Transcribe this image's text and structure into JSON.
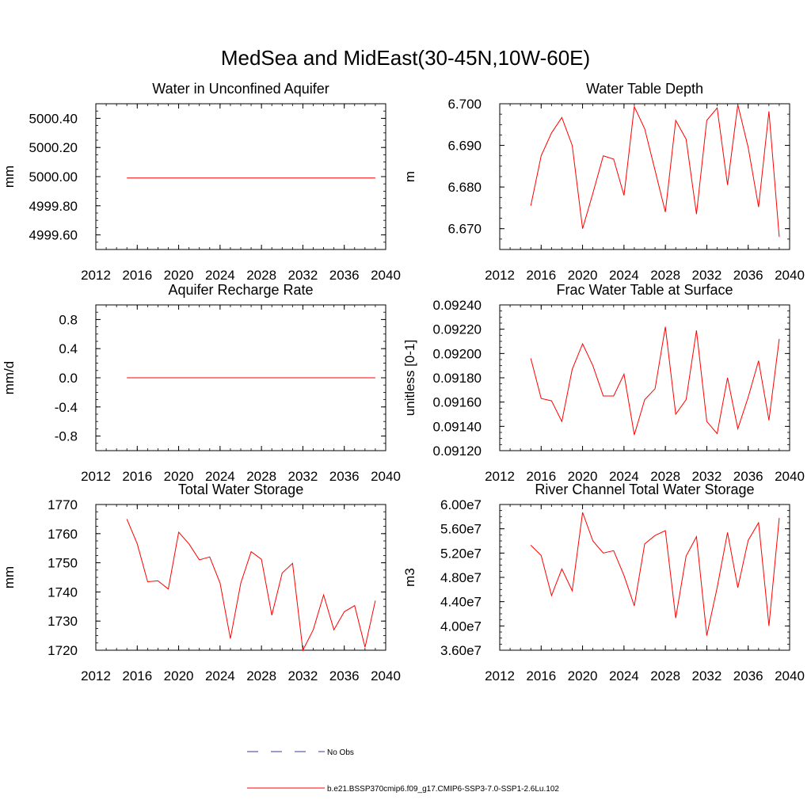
{
  "figure_title": "MedSea and MidEast(30-45N,10W-60E)",
  "legend": {
    "items": [
      {
        "label": "No Obs",
        "style": "dashed",
        "color": "#3a3a9a"
      },
      {
        "label": "b.e21.BSSP370cmip6.f09_g17.CMIP6-SSP3-7.0-SSP1-2.6Lu.102",
        "style": "solid",
        "color": "#ff0000"
      }
    ]
  },
  "chart_data": [
    {
      "type": "line",
      "title": "Water in Unconfined Aquifer",
      "ylabel": "mm",
      "xlim": [
        2012,
        2040
      ],
      "xticks": [
        2012,
        2016,
        2020,
        2024,
        2028,
        2032,
        2036,
        2040
      ],
      "xticklabels": [
        "2012",
        "2016",
        "2020",
        "2024",
        "2028",
        "2032",
        "2036",
        "2040"
      ],
      "ylim": [
        4999.5,
        5000.5
      ],
      "yticks": [
        4999.6,
        4999.8,
        5000.0,
        5000.2,
        5000.4
      ],
      "yticklabels": [
        "4999.60",
        "4999.80",
        "5000.00",
        "5000.20",
        "5000.40"
      ],
      "x": [
        2015,
        2016,
        2017,
        2018,
        2019,
        2020,
        2021,
        2022,
        2023,
        2024,
        2025,
        2026,
        2027,
        2028,
        2029,
        2030,
        2031,
        2032,
        2033,
        2034,
        2035,
        2036,
        2037,
        2038,
        2039
      ],
      "series": [
        {
          "values": [
            4999.99,
            4999.99,
            4999.99,
            4999.99,
            4999.99,
            4999.99,
            4999.99,
            4999.99,
            4999.99,
            4999.99,
            4999.99,
            4999.99,
            4999.99,
            4999.99,
            4999.99,
            4999.99,
            4999.99,
            4999.99,
            4999.99,
            4999.99,
            4999.99,
            4999.99,
            4999.99,
            4999.99,
            4999.99
          ],
          "color": "#ff0000"
        }
      ]
    },
    {
      "type": "line",
      "title": "Water Table Depth",
      "ylabel": "m",
      "xlim": [
        2012,
        2040
      ],
      "xticks": [
        2012,
        2016,
        2020,
        2024,
        2028,
        2032,
        2036,
        2040
      ],
      "xticklabels": [
        "2012",
        "2016",
        "2020",
        "2024",
        "2028",
        "2032",
        "2036",
        "2040"
      ],
      "ylim": [
        6.665,
        6.7
      ],
      "yticks": [
        6.67,
        6.68,
        6.69,
        6.7
      ],
      "yticklabels": [
        "6.670",
        "6.680",
        "6.690",
        "6.700"
      ],
      "x": [
        2015,
        2016,
        2017,
        2018,
        2019,
        2020,
        2021,
        2022,
        2023,
        2024,
        2025,
        2026,
        2027,
        2028,
        2029,
        2030,
        2031,
        2032,
        2033,
        2034,
        2035,
        2036,
        2037,
        2038,
        2039
      ],
      "series": [
        {
          "values": [
            6.6755,
            6.6875,
            6.693,
            6.6967,
            6.69,
            6.67,
            6.6785,
            6.6875,
            6.6867,
            6.678,
            6.6993,
            6.694,
            6.684,
            6.674,
            6.696,
            6.6915,
            6.6735,
            6.696,
            6.699,
            6.6805,
            6.6998,
            6.6895,
            6.6752,
            6.6982,
            6.668
          ],
          "color": "#ff0000"
        }
      ]
    },
    {
      "type": "line",
      "title": "Aquifer Recharge Rate",
      "ylabel": "mm/d",
      "xlim": [
        2012,
        2040
      ],
      "xticks": [
        2012,
        2016,
        2020,
        2024,
        2028,
        2032,
        2036,
        2040
      ],
      "xticklabels": [
        "2012",
        "2016",
        "2020",
        "2024",
        "2028",
        "2032",
        "2036",
        "2040"
      ],
      "ylim": [
        -1.0,
        1.0
      ],
      "yticks": [
        -0.8,
        -0.4,
        0.0,
        0.4,
        0.8
      ],
      "yticklabels": [
        "-0.8",
        "-0.4",
        "0.0",
        "0.4",
        "0.8"
      ],
      "x": [
        2015,
        2016,
        2017,
        2018,
        2019,
        2020,
        2021,
        2022,
        2023,
        2024,
        2025,
        2026,
        2027,
        2028,
        2029,
        2030,
        2031,
        2032,
        2033,
        2034,
        2035,
        2036,
        2037,
        2038,
        2039
      ],
      "series": [
        {
          "values": [
            0,
            0,
            0,
            0,
            0,
            0,
            0,
            0,
            0,
            0,
            0,
            0,
            0,
            0,
            0,
            0,
            0,
            0,
            0,
            0,
            0,
            0,
            0,
            0,
            0
          ],
          "color": "#ff0000"
        }
      ]
    },
    {
      "type": "line",
      "title": "Frac Water Table at Surface",
      "ylabel": "unitless [0-1]",
      "xlim": [
        2012,
        2040
      ],
      "xticks": [
        2012,
        2016,
        2020,
        2024,
        2028,
        2032,
        2036,
        2040
      ],
      "xticklabels": [
        "2012",
        "2016",
        "2020",
        "2024",
        "2028",
        "2032",
        "2036",
        "2040"
      ],
      "ylim": [
        0.0912,
        0.0924
      ],
      "yticks": [
        0.0912,
        0.0914,
        0.0916,
        0.0918,
        0.092,
        0.0922,
        0.0924
      ],
      "yticklabels": [
        "0.09120",
        "0.09140",
        "0.09160",
        "0.09180",
        "0.09200",
        "0.09220",
        "0.09240"
      ],
      "x": [
        2015,
        2016,
        2017,
        2018,
        2019,
        2020,
        2021,
        2022,
        2023,
        2024,
        2025,
        2026,
        2027,
        2028,
        2029,
        2030,
        2031,
        2032,
        2033,
        2034,
        2035,
        2036,
        2037,
        2038,
        2039
      ],
      "series": [
        {
          "values": [
            0.09196,
            0.09163,
            0.09161,
            0.09144,
            0.09187,
            0.09208,
            0.0919,
            0.09165,
            0.09165,
            0.09183,
            0.09133,
            0.09162,
            0.09171,
            0.09222,
            0.0915,
            0.09162,
            0.09219,
            0.09144,
            0.09134,
            0.0918,
            0.09138,
            0.09164,
            0.09194,
            0.09145,
            0.09212
          ],
          "color": "#ff0000"
        }
      ]
    },
    {
      "type": "line",
      "title": "Total Water Storage",
      "ylabel": "mm",
      "xlim": [
        2012,
        2040
      ],
      "xticks": [
        2012,
        2016,
        2020,
        2024,
        2028,
        2032,
        2036,
        2040
      ],
      "xticklabels": [
        "2012",
        "2016",
        "2020",
        "2024",
        "2028",
        "2032",
        "2036",
        "2040"
      ],
      "ylim": [
        1720,
        1770
      ],
      "yticks": [
        1720,
        1730,
        1740,
        1750,
        1760,
        1770
      ],
      "yticklabels": [
        "1720",
        "1730",
        "1740",
        "1750",
        "1760",
        "1770"
      ],
      "x": [
        2015,
        2016,
        2017,
        2018,
        2019,
        2020,
        2021,
        2022,
        2023,
        2024,
        2025,
        2026,
        2027,
        2028,
        2029,
        2030,
        2031,
        2032,
        2033,
        2034,
        2035,
        2036,
        2037,
        2038,
        2039
      ],
      "series": [
        {
          "values": [
            1765,
            1756.5,
            1743.5,
            1743.8,
            1741,
            1760.5,
            1756.5,
            1751,
            1752,
            1743,
            1724,
            1743,
            1753.8,
            1751.2,
            1732,
            1746.5,
            1749.8,
            1720,
            1727,
            1739,
            1727,
            1733.2,
            1735.3,
            1721,
            1737
          ],
          "color": "#ff0000"
        }
      ]
    },
    {
      "type": "line",
      "title": "River Channel Total Water Storage",
      "ylabel": "m3",
      "xlim": [
        2012,
        2040
      ],
      "xticks": [
        2012,
        2016,
        2020,
        2024,
        2028,
        2032,
        2036,
        2040
      ],
      "xticklabels": [
        "2012",
        "2016",
        "2020",
        "2024",
        "2028",
        "2032",
        "2036",
        "2040"
      ],
      "ylim": [
        36000000,
        60000000
      ],
      "yticks": [
        36000000,
        40000000,
        44000000,
        48000000,
        52000000,
        56000000,
        60000000
      ],
      "yticklabels": [
        "3.60e7",
        "4.00e7",
        "4.40e7",
        "4.80e7",
        "5.20e7",
        "5.60e7",
        "6.00e7"
      ],
      "x": [
        2015,
        2016,
        2017,
        2018,
        2019,
        2020,
        2021,
        2022,
        2023,
        2024,
        2025,
        2026,
        2027,
        2028,
        2029,
        2030,
        2031,
        2032,
        2033,
        2034,
        2035,
        2036,
        2037,
        2038,
        2039
      ],
      "series": [
        {
          "values": [
            53300000,
            51600000,
            45000000,
            49400000,
            45800000,
            58700000,
            54000000,
            52000000,
            52400000,
            48300000,
            43300000,
            53500000,
            54900000,
            55700000,
            41300000,
            51500000,
            54700000,
            38400000,
            46300000,
            55400000,
            46300000,
            54100000,
            57000000,
            40000000,
            57800000
          ],
          "color": "#ff0000"
        }
      ]
    }
  ]
}
